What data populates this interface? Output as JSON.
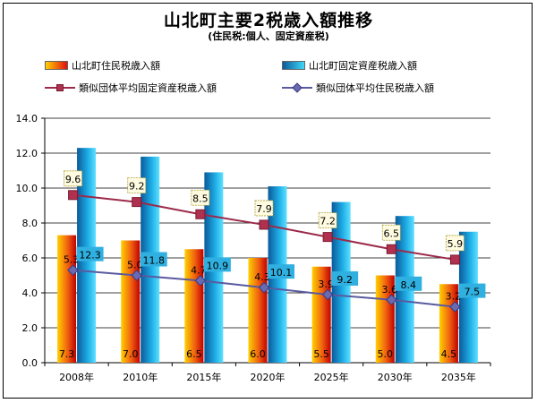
{
  "chart_data": {
    "type": "bar",
    "title": "山北町主要2税歳入額推移",
    "subtitle": "(住民税:個人、固定資産税)",
    "categories": [
      "2008年",
      "2010年",
      "2015年",
      "2020年",
      "2025年",
      "2030年",
      "2035年"
    ],
    "ylim": [
      0,
      14
    ],
    "yticks": [
      "0.0",
      "2.0",
      "4.0",
      "6.0",
      "8.0",
      "10.0",
      "12.0",
      "14.0"
    ],
    "grid": true,
    "legend_placement": "top",
    "series": [
      {
        "name": "山北町住民税歳入額",
        "kind": "bar",
        "color": "#f05010",
        "values": [
          7.3,
          7.0,
          6.5,
          6.0,
          5.5,
          5.0,
          4.5
        ],
        "labels": [
          "7.3",
          "7.0",
          "6.5",
          "6.0",
          "5.5",
          "5.0",
          "4.5"
        ]
      },
      {
        "name": "山北町固定資産税歳入額",
        "kind": "bar",
        "color": "#10a0d8",
        "values": [
          12.3,
          11.8,
          10.9,
          10.1,
          9.2,
          8.4,
          7.5
        ],
        "labels": [
          "12.3",
          "11.8",
          "10.9",
          "10.1",
          "9.2",
          "8.4",
          "7.5"
        ]
      },
      {
        "name": "類似団体平均固定資産税歳入額",
        "kind": "line",
        "color": "#9c2a4a",
        "values": [
          9.6,
          9.2,
          8.5,
          7.9,
          7.2,
          6.5,
          5.9
        ],
        "labels": [
          "9.6",
          "9.2",
          "8.5",
          "7.9",
          "7.2",
          "6.5",
          "5.9"
        ]
      },
      {
        "name": "類似団体平均住民税歳入額",
        "kind": "line",
        "color": "#5a5aa0",
        "values": [
          5.3,
          5.0,
          4.7,
          4.3,
          3.9,
          3.6,
          3.2
        ],
        "labels": [
          "5.3",
          "5.0",
          "4.7",
          "4.3",
          "3.9",
          "3.6",
          "3.2"
        ]
      }
    ]
  }
}
